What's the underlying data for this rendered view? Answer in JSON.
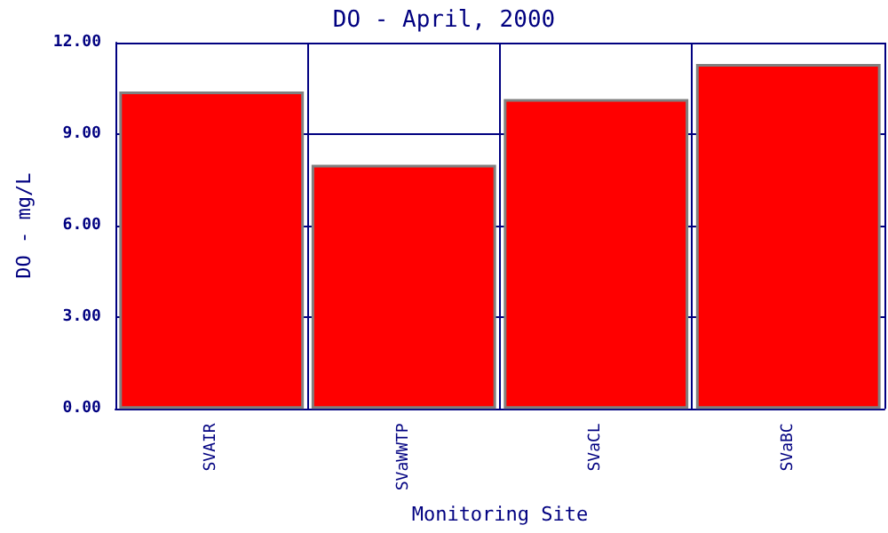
{
  "chart_data": {
    "type": "bar",
    "title": "DO - April, 2000",
    "xlabel": "Monitoring Site",
    "ylabel": "DO - mg/L",
    "categories": [
      "SVAIR",
      "SVaWWTP",
      "SVaCL",
      "SVaBC"
    ],
    "values": [
      10.4,
      8.0,
      10.15,
      11.3
    ],
    "color": "#ff0000",
    "ylim": [
      0,
      12
    ],
    "yticks": [
      {
        "value": 0,
        "label": "0.00"
      },
      {
        "value": 3,
        "label": "3.00"
      },
      {
        "value": 6,
        "label": "6.00"
      },
      {
        "value": 9,
        "label": "9.00"
      },
      {
        "value": 12,
        "label": "12.00"
      }
    ],
    "grid": true
  }
}
